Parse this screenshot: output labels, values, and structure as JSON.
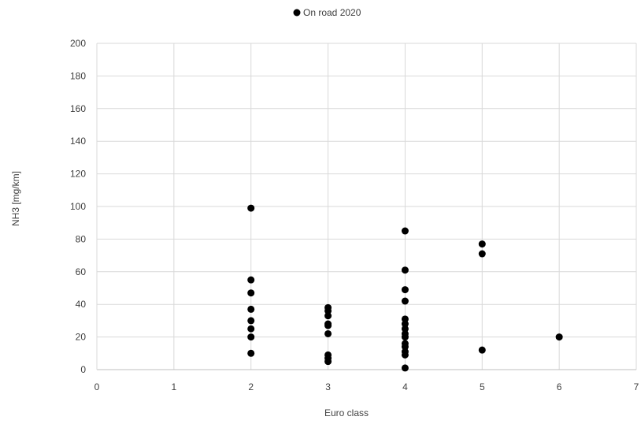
{
  "chart_data": {
    "type": "scatter",
    "legend_position": "top-center",
    "grid": true,
    "xlabel": "Euro class",
    "ylabel": "NH3 [mg/km]",
    "xlim": [
      0,
      7
    ],
    "ylim": [
      0,
      200
    ],
    "x_ticks": [
      "0",
      "1",
      "2",
      "3",
      "4",
      "5",
      "6",
      "7"
    ],
    "y_ticks": [
      "0",
      "20",
      "40",
      "60",
      "80",
      "100",
      "120",
      "140",
      "160",
      "180",
      "200"
    ],
    "series": [
      {
        "name": "On road 2020",
        "color": "#000000",
        "points": [
          {
            "x": 2,
            "y": 99
          },
          {
            "x": 2,
            "y": 55
          },
          {
            "x": 2,
            "y": 47
          },
          {
            "x": 2,
            "y": 37
          },
          {
            "x": 2,
            "y": 30
          },
          {
            "x": 2,
            "y": 25
          },
          {
            "x": 2,
            "y": 20
          },
          {
            "x": 2,
            "y": 10
          },
          {
            "x": 3,
            "y": 38
          },
          {
            "x": 3,
            "y": 36
          },
          {
            "x": 3,
            "y": 33
          },
          {
            "x": 3,
            "y": 28
          },
          {
            "x": 3,
            "y": 27
          },
          {
            "x": 3,
            "y": 22
          },
          {
            "x": 3,
            "y": 9
          },
          {
            "x": 3,
            "y": 7
          },
          {
            "x": 3,
            "y": 5
          },
          {
            "x": 4,
            "y": 85
          },
          {
            "x": 4,
            "y": 61
          },
          {
            "x": 4,
            "y": 49
          },
          {
            "x": 4,
            "y": 42
          },
          {
            "x": 4,
            "y": 31
          },
          {
            "x": 4,
            "y": 28
          },
          {
            "x": 4,
            "y": 25
          },
          {
            "x": 4,
            "y": 22
          },
          {
            "x": 4,
            "y": 20
          },
          {
            "x": 4,
            "y": 16
          },
          {
            "x": 4,
            "y": 14
          },
          {
            "x": 4,
            "y": 11
          },
          {
            "x": 4,
            "y": 9
          },
          {
            "x": 4,
            "y": 1
          },
          {
            "x": 5,
            "y": 77
          },
          {
            "x": 5,
            "y": 71
          },
          {
            "x": 5,
            "y": 12
          },
          {
            "x": 6,
            "y": 20
          }
        ]
      }
    ]
  }
}
